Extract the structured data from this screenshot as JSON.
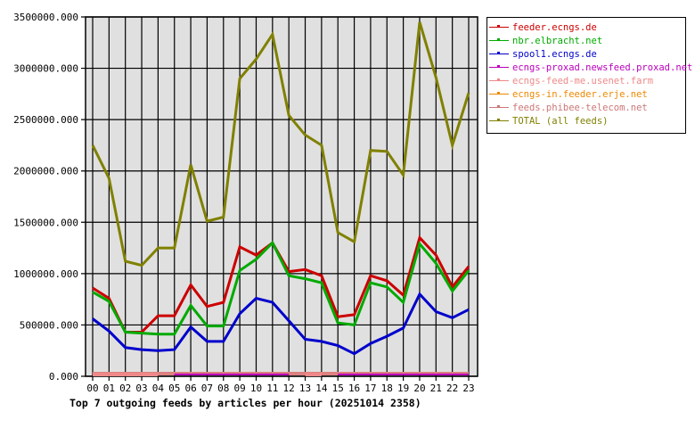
{
  "chart_data": {
    "type": "line",
    "title": "Top 7 outgoing feeds by articles per hour (20251014 2358)",
    "xlabel": "",
    "ylabel": "",
    "ylim": [
      0,
      3500000
    ],
    "grid": true,
    "legend_position": "right",
    "x": [
      "00",
      "01",
      "02",
      "03",
      "04",
      "05",
      "06",
      "07",
      "08",
      "09",
      "10",
      "11",
      "12",
      "13",
      "14",
      "15",
      "16",
      "17",
      "18",
      "19",
      "20",
      "21",
      "22",
      "23"
    ],
    "yticks": [
      "0.000",
      "500000.000",
      "1000000.000",
      "1500000.000",
      "2000000.000",
      "2500000.000",
      "3000000.000",
      "3500000.000"
    ],
    "series": [
      {
        "name": "feeder.ecngs.de",
        "color": "#cc0000",
        "values": [
          860000,
          760000,
          430000,
          430000,
          590000,
          590000,
          890000,
          680000,
          720000,
          1260000,
          1180000,
          1300000,
          1020000,
          1040000,
          980000,
          580000,
          600000,
          980000,
          930000,
          790000,
          1350000,
          1180000,
          870000,
          1070000
        ]
      },
      {
        "name": "nbr.elbracht.net",
        "color": "#00aa00",
        "values": [
          820000,
          730000,
          430000,
          420000,
          410000,
          410000,
          690000,
          490000,
          490000,
          1030000,
          1140000,
          1300000,
          980000,
          950000,
          910000,
          520000,
          500000,
          910000,
          870000,
          720000,
          1290000,
          1100000,
          830000,
          1030000
        ]
      },
      {
        "name": "spool1.ecngs.de",
        "color": "#0000cc",
        "values": [
          560000,
          440000,
          280000,
          260000,
          250000,
          260000,
          480000,
          340000,
          340000,
          610000,
          760000,
          720000,
          540000,
          360000,
          340000,
          300000,
          220000,
          320000,
          390000,
          470000,
          800000,
          630000,
          570000,
          650000
        ]
      },
      {
        "name": "ecngs-proxad.newsfeed.proxad.net",
        "color": "#bb00bb",
        "values": [
          0,
          0,
          0,
          0,
          0,
          3000,
          3000,
          3000,
          3000,
          3000,
          3000,
          3000,
          3000,
          0,
          0,
          3000,
          3000,
          3000,
          3000,
          3000,
          3000,
          3000,
          3000,
          3000
        ]
      },
      {
        "name": "ecngs-feed-me.usenet.farm",
        "color": "#ee8888",
        "values": [
          3000,
          3000,
          3000,
          3000,
          3000,
          0,
          0,
          0,
          0,
          0,
          0,
          0,
          0,
          3000,
          3000,
          0,
          0,
          0,
          0,
          0,
          0,
          0,
          0,
          0
        ]
      },
      {
        "name": "ecngs-in.feeder.erje.net",
        "color": "#ee8800",
        "values": [
          0,
          0,
          0,
          0,
          0,
          0,
          0,
          0,
          0,
          0,
          0,
          0,
          0,
          0,
          0,
          0,
          0,
          0,
          0,
          0,
          0,
          0,
          0,
          0
        ]
      },
      {
        "name": "feeds.phibee-telecom.net",
        "color": "#cc7777",
        "values": [
          0,
          0,
          0,
          0,
          0,
          0,
          0,
          0,
          0,
          0,
          0,
          0,
          0,
          0,
          0,
          0,
          0,
          0,
          0,
          0,
          0,
          0,
          0,
          0
        ]
      },
      {
        "name": "TOTAL (all feeds)",
        "color": "#808000",
        "values": [
          2250000,
          1930000,
          1120000,
          1080000,
          1250000,
          1250000,
          2060000,
          1510000,
          1550000,
          2900000,
          3090000,
          3330000,
          2540000,
          2350000,
          2250000,
          1400000,
          1310000,
          2200000,
          2190000,
          1960000,
          3450000,
          2910000,
          2250000,
          2760000
        ]
      }
    ]
  },
  "colors": {
    "plot_background": "#e0e0e0",
    "grid": "#000000",
    "page_background": "#ffffff"
  }
}
